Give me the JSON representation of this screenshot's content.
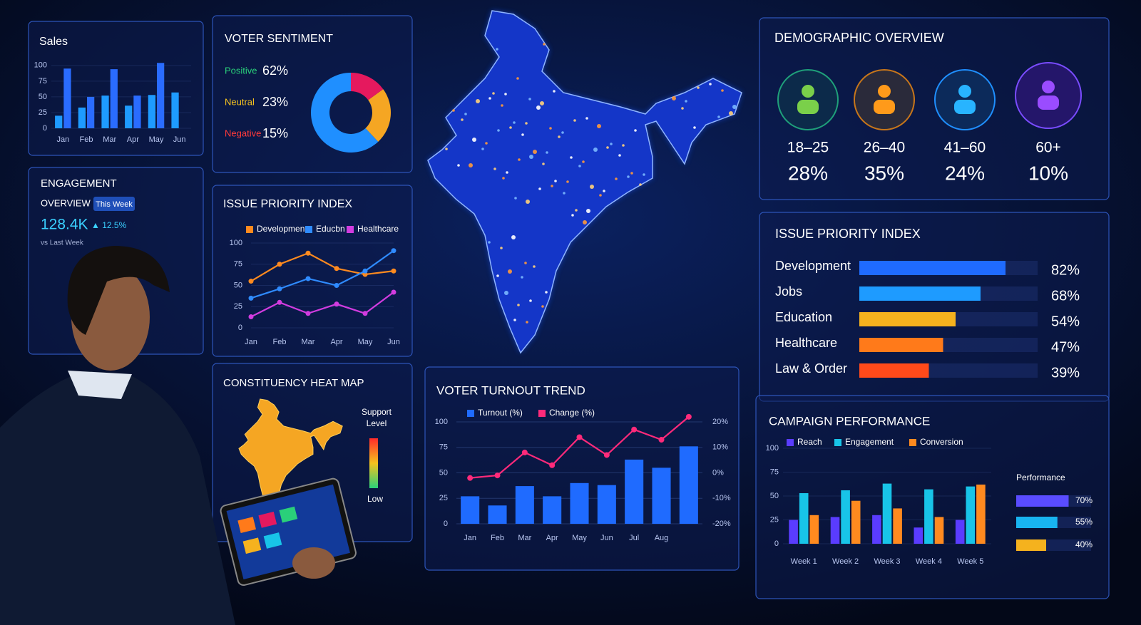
{
  "chart_data": [
    {
      "type": "bar",
      "title": "Sales",
      "categories": [
        "Jan",
        "Feb",
        "Mar",
        "Apr",
        "May",
        "Jun"
      ],
      "series": [
        {
          "color": "#1e9bff",
          "values": [
            20,
            33,
            52,
            36,
            53,
            57
          ]
        },
        {
          "color": "#2a6cff",
          "values": [
            95,
            50,
            94,
            52,
            104,
            null
          ]
        }
      ],
      "ylim": [
        0,
        110
      ],
      "yticks": [
        0,
        25,
        50,
        75,
        100
      ],
      "grid": true
    },
    {
      "type": "pie",
      "title": "VOTER SENTIMENT",
      "categories": [
        "Positive",
        "Neutral",
        "Negative"
      ],
      "values": [
        62,
        23,
        15
      ],
      "value_labels": [
        "62%",
        "23%",
        "15%"
      ],
      "colors": [
        "#1f8fff",
        "#f5a623",
        "#e5195e"
      ]
    },
    {
      "type": "line",
      "title": "ISSUE PRIORITY INDEX",
      "categories": [
        "Jan",
        "Feb",
        "Mar",
        "Apr",
        "May",
        "Jun"
      ],
      "series": [
        {
          "name": "Development",
          "color": "#ff8a1f",
          "values": [
            55,
            75,
            88,
            70,
            63,
            67
          ]
        },
        {
          "name": "Educbn",
          "color": "#2f8bff",
          "values": [
            35,
            46,
            58,
            50,
            67,
            91
          ]
        },
        {
          "name": "Healthcare",
          "color": "#d23ce0",
          "values": [
            13,
            30,
            17,
            28,
            17,
            42
          ]
        }
      ],
      "ylim": [
        0,
        100
      ],
      "yticks": [
        0,
        25,
        50,
        75,
        100
      ],
      "grid": true
    },
    {
      "type": "hbar",
      "title": "ISSUE PRIORITY INDEX",
      "categories": [
        "Development",
        "Jobs",
        "Education",
        "Healthcare",
        "Law & Order"
      ],
      "values": [
        82,
        68,
        54,
        47,
        39
      ],
      "value_labels": [
        "82%",
        "68%",
        "54%",
        "47%",
        "39%"
      ],
      "colors": [
        "#1f6bff",
        "#1e9bff",
        "#f5b21e",
        "#ff7a1a",
        "#ff4a1a"
      ],
      "xlim": [
        0,
        100
      ]
    },
    {
      "type": "combo",
      "title": "VOTER TURNOUT TREND",
      "categories": [
        "Jan",
        "Feb",
        "Mar",
        "Apr",
        "May",
        "Jun",
        "Jul",
        "Aug",
        null
      ],
      "series": [
        {
          "name": "Turnout (%)",
          "color": "#1f6bff",
          "values": [
            27,
            18,
            37,
            27,
            40,
            38,
            63,
            55,
            76
          ]
        },
        {
          "name": "Change (%)",
          "color": "#ff2a7a",
          "axis": "y2",
          "values": [
            -2,
            -1,
            8,
            3,
            14,
            7,
            17,
            13,
            22
          ]
        }
      ],
      "ylim": [
        0,
        100
      ],
      "yticks": [
        0,
        25,
        50,
        75,
        100
      ],
      "y2lim": [
        -20,
        20
      ],
      "y2ticks": [
        {
          "value": -20,
          "label": "-20%"
        },
        {
          "value": -10,
          "label": "-10%"
        },
        {
          "value": 0,
          "label": "0%"
        },
        {
          "value": 10,
          "label": "10%"
        },
        {
          "value": 20,
          "label": "20%"
        }
      ],
      "grid": true
    },
    {
      "type": "bar",
      "title": "CAMPAIGN PERFORMANCE",
      "categories": [
        "Week 1",
        "Week 2",
        "Week 3",
        "Week 4",
        "Week 5"
      ],
      "series": [
        {
          "name": "Reach",
          "color": "#5a3cff",
          "values": [
            25,
            28,
            30,
            17,
            25
          ]
        },
        {
          "name": "Engagement",
          "color": "#18c4e8",
          "values": [
            53,
            56,
            63,
            57,
            60
          ]
        },
        {
          "name": "Conversion",
          "color": "#ff8a1f",
          "values": [
            30,
            45,
            37,
            28,
            62
          ]
        }
      ],
      "ylim": [
        0,
        100
      ],
      "yticks": [
        0,
        25,
        50,
        75,
        100
      ],
      "grid": true
    },
    {
      "type": "hbar",
      "title": "Performance",
      "values": [
        70,
        55,
        40
      ],
      "value_labels": [
        "70%",
        "55%",
        "40%"
      ],
      "colors": [
        "#5a4cff",
        "#18b4f0",
        "#f5b21e"
      ],
      "xlim": [
        0,
        100
      ]
    }
  ],
  "engagement": {
    "title": "ENGAGEMENT",
    "subtitle": "OVERVIEW",
    "badge": "This Week",
    "value": "128.4K",
    "change": "▲ 12.5%",
    "note": "vs Last Week"
  },
  "demographics": {
    "title": "DEMOGRAPHIC OVERVIEW",
    "groups": [
      {
        "label": "18–25",
        "value": "28%"
      },
      {
        "label": "26–40",
        "value": "35%"
      },
      {
        "label": "41–60",
        "value": "24%"
      },
      {
        "label": "60+",
        "value": "10%"
      }
    ]
  },
  "heat_map": {
    "title": "CONSTITUENCY HEAT MAP",
    "legend_title": "Support Level",
    "low": "Low"
  }
}
